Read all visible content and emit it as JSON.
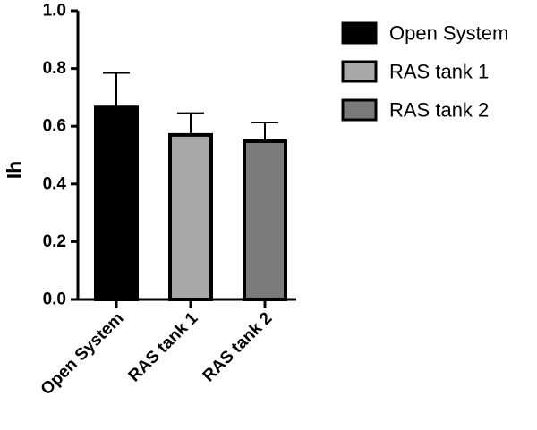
{
  "chart_data": {
    "type": "bar",
    "categories": [
      "Open System",
      "RAS tank 1",
      "RAS tank 2"
    ],
    "values": [
      0.665,
      0.57,
      0.548
    ],
    "errors": [
      0.12,
      0.075,
      0.065
    ],
    "colors": [
      "#000000",
      "#a8a8a8",
      "#7a7a7a"
    ],
    "xlabel": "",
    "ylabel": "Ih",
    "ylim": [
      0,
      1.0
    ],
    "yticks": [
      "0.0",
      "0.2",
      "0.4",
      "0.6",
      "0.8",
      "1.0"
    ],
    "grid": false,
    "legend_position": "top-right",
    "legend": [
      {
        "label": "Open System",
        "color": "#000000"
      },
      {
        "label": "RAS tank 1",
        "color": "#a8a8a8"
      },
      {
        "label": "RAS tank 2",
        "color": "#7a7a7a"
      }
    ]
  }
}
